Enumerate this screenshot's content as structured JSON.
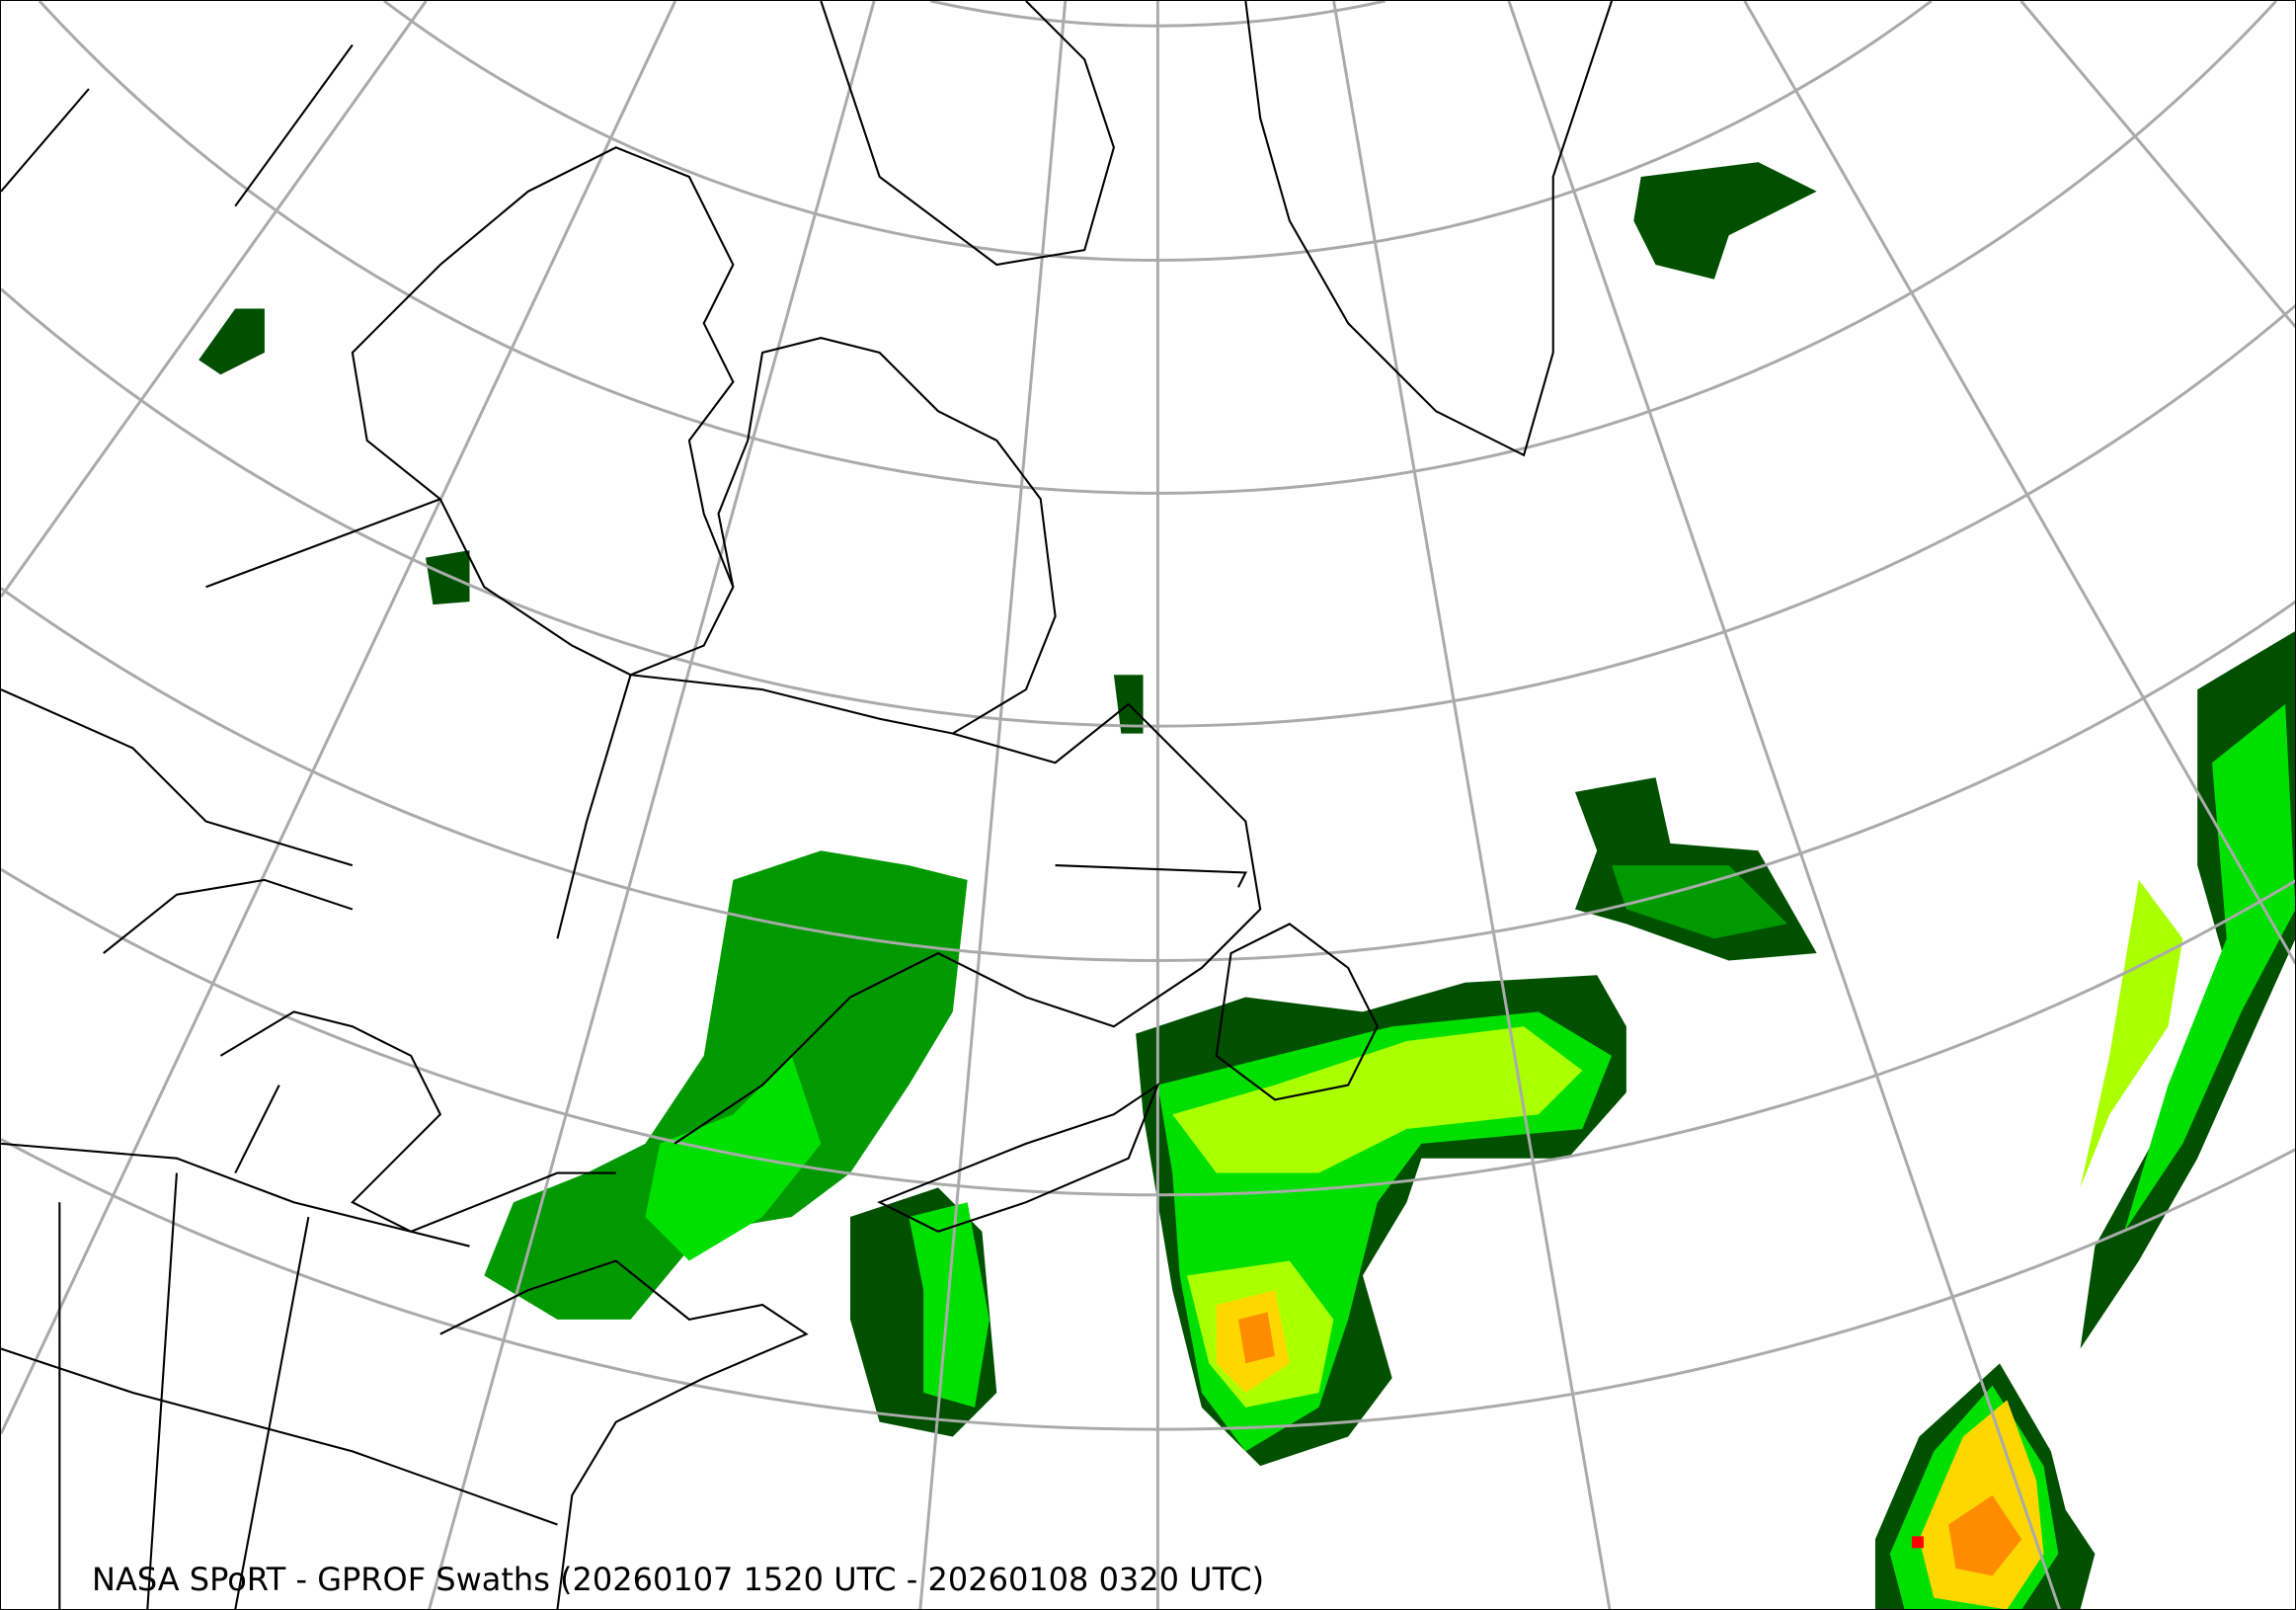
{
  "title": "NASA SPoRT - GPROF Swaths (20260107 1520 UTC - 20260108 0320 UTC)",
  "map": {
    "projection": "conic",
    "region": "Northeastern North America, Greenland and North Atlantic",
    "graticule_color": "#aaaaaa",
    "coastline_color": "#000000"
  },
  "precip_colors": {
    "very_light": "#005000",
    "light": "#009900",
    "moderate": "#00e000",
    "moderate_heavy": "#aaff00",
    "heavy": "#ffd700",
    "very_heavy": "#ff8c00",
    "extreme": "#ff0000"
  }
}
